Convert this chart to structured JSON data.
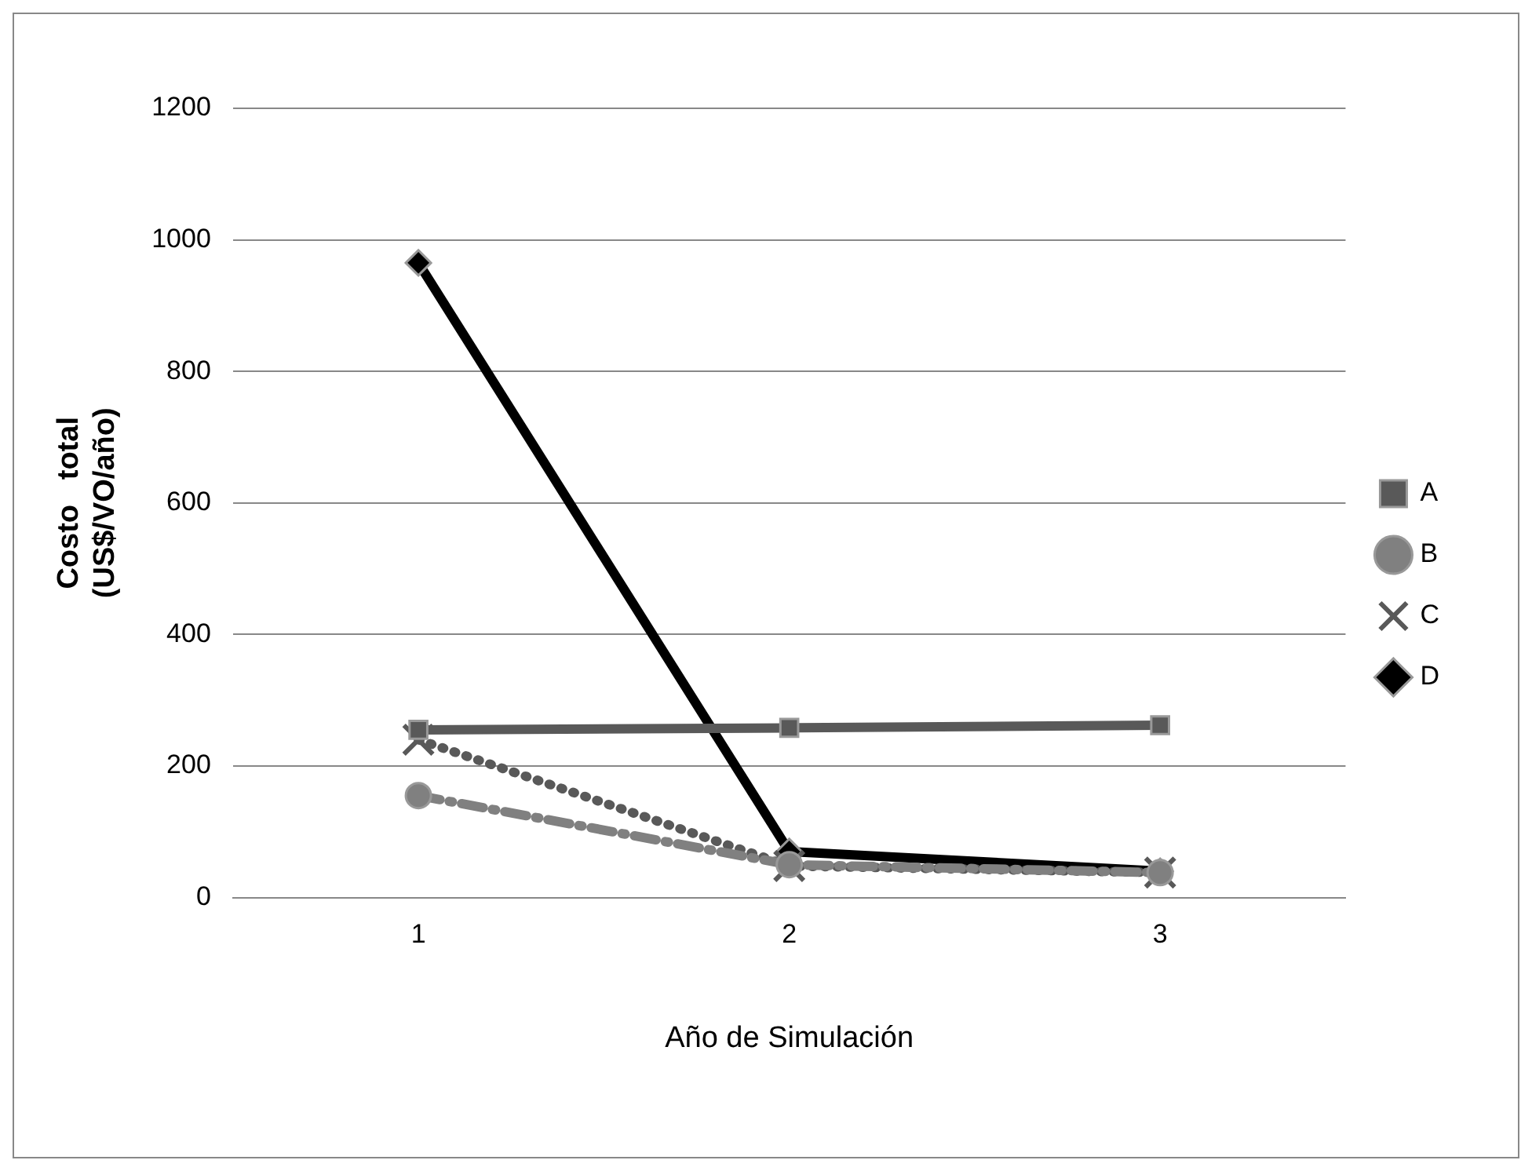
{
  "chart_data": {
    "type": "line",
    "xlabel": "Año de Simulación",
    "ylabel": "Costo   total (US$/VO/año)",
    "categories": [
      "1",
      "2",
      "3"
    ],
    "series": [
      {
        "name": "A",
        "color": "#595959",
        "values": [
          255,
          258,
          262
        ],
        "marker": "square",
        "line_style": "solid"
      },
      {
        "name": "B",
        "color": "#808080",
        "values": [
          155,
          50,
          38
        ],
        "marker": "circle",
        "line_style": "dashed"
      },
      {
        "name": "C",
        "color": "#595959",
        "values": [
          240,
          48,
          38
        ],
        "marker": "cross",
        "line_style": "dotted"
      },
      {
        "name": "D",
        "color": "#000000",
        "values": [
          965,
          70,
          40
        ],
        "marker": "diamond",
        "line_style": "solid"
      }
    ],
    "ylim": [
      0,
      1200
    ],
    "yticks": [
      0,
      200,
      400,
      600,
      800,
      1000,
      1200
    ],
    "grid": "y",
    "legend": "right"
  }
}
